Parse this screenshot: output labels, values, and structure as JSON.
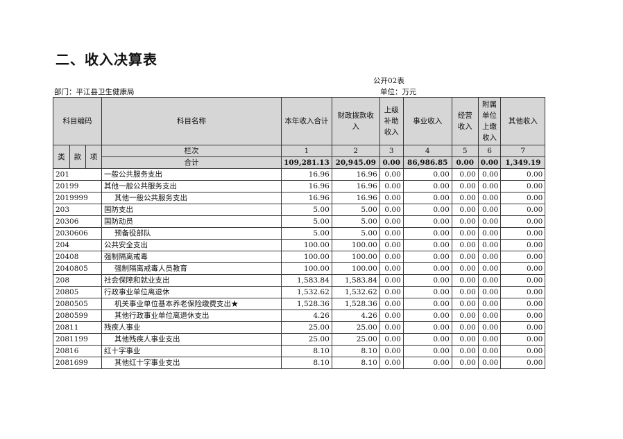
{
  "title": "二、收入决算表",
  "form_no": "公开02表",
  "department": "部门：平江县卫生健康局",
  "unit": "单位：万元",
  "headers": {
    "code": "科目编码",
    "name": "科目名称",
    "c1": "本年收入合计",
    "c2": "财政拨款收入",
    "c3": "上级补助收入",
    "c4": "事业收入",
    "c5": "经营收入",
    "c6": "附属单位上缴收入",
    "c7": "其他收入",
    "lei": "类",
    "kuan": "款",
    "xiang": "项",
    "lanci": "栏次",
    "nums": [
      "1",
      "2",
      "3",
      "4",
      "5",
      "6",
      "7"
    ]
  },
  "total": {
    "label": "合计",
    "values": [
      "109,281.13",
      "20,945.09",
      "0.00",
      "86,986.85",
      "0.00",
      "0.00",
      "1,349.19"
    ]
  },
  "rows": [
    {
      "code": "201",
      "name": "一般公共服务支出",
      "values": [
        "16.96",
        "16.96",
        "0.00",
        "0.00",
        "0.00",
        "0.00",
        "0.00"
      ]
    },
    {
      "code": "20199",
      "name": "其他一般公共服务支出",
      "values": [
        "16.96",
        "16.96",
        "0.00",
        "0.00",
        "0.00",
        "0.00",
        "0.00"
      ]
    },
    {
      "code": "2019999",
      "name": "其他一般公共服务支出",
      "values": [
        "16.96",
        "16.96",
        "0.00",
        "0.00",
        "0.00",
        "0.00",
        "0.00"
      ]
    },
    {
      "code": "203",
      "name": "国防支出",
      "values": [
        "5.00",
        "5.00",
        "0.00",
        "0.00",
        "0.00",
        "0.00",
        "0.00"
      ]
    },
    {
      "code": "20306",
      "name": "国防动员",
      "values": [
        "5.00",
        "5.00",
        "0.00",
        "0.00",
        "0.00",
        "0.00",
        "0.00"
      ]
    },
    {
      "code": "2030606",
      "name": "预备役部队",
      "values": [
        "5.00",
        "5.00",
        "0.00",
        "0.00",
        "0.00",
        "0.00",
        "0.00"
      ]
    },
    {
      "code": "204",
      "name": "公共安全支出",
      "values": [
        "100.00",
        "100.00",
        "0.00",
        "0.00",
        "0.00",
        "0.00",
        "0.00"
      ]
    },
    {
      "code": "20408",
      "name": "强制隔离戒毒",
      "values": [
        "100.00",
        "100.00",
        "0.00",
        "0.00",
        "0.00",
        "0.00",
        "0.00"
      ]
    },
    {
      "code": "2040805",
      "name": "强制隔离戒毒人员教育",
      "values": [
        "100.00",
        "100.00",
        "0.00",
        "0.00",
        "0.00",
        "0.00",
        "0.00"
      ]
    },
    {
      "code": "208",
      "name": "社会保障和就业支出",
      "values": [
        "1,583.84",
        "1,583.84",
        "0.00",
        "0.00",
        "0.00",
        "0.00",
        "0.00"
      ]
    },
    {
      "code": "20805",
      "name": "行政事业单位离退休",
      "values": [
        "1,532.62",
        "1,532.62",
        "0.00",
        "0.00",
        "0.00",
        "0.00",
        "0.00"
      ]
    },
    {
      "code": "2080505",
      "name": "机关事业单位基本养老保险缴费支出★",
      "values": [
        "1,528.36",
        "1,528.36",
        "0.00",
        "0.00",
        "0.00",
        "0.00",
        "0.00"
      ]
    },
    {
      "code": "2080599",
      "name": "其他行政事业单位离退休支出",
      "values": [
        "4.26",
        "4.26",
        "0.00",
        "0.00",
        "0.00",
        "0.00",
        "0.00"
      ]
    },
    {
      "code": "20811",
      "name": "残疾人事业",
      "values": [
        "25.00",
        "25.00",
        "0.00",
        "0.00",
        "0.00",
        "0.00",
        "0.00"
      ]
    },
    {
      "code": "2081199",
      "name": "其他残疾人事业支出",
      "values": [
        "25.00",
        "25.00",
        "0.00",
        "0.00",
        "0.00",
        "0.00",
        "0.00"
      ]
    },
    {
      "code": "20816",
      "name": "红十字事业",
      "values": [
        "8.10",
        "8.10",
        "0.00",
        "0.00",
        "0.00",
        "0.00",
        "0.00"
      ]
    },
    {
      "code": "2081699",
      "name": "其他红十字事业支出",
      "values": [
        "8.10",
        "8.10",
        "0.00",
        "0.00",
        "0.00",
        "0.00",
        "0.00"
      ]
    }
  ]
}
